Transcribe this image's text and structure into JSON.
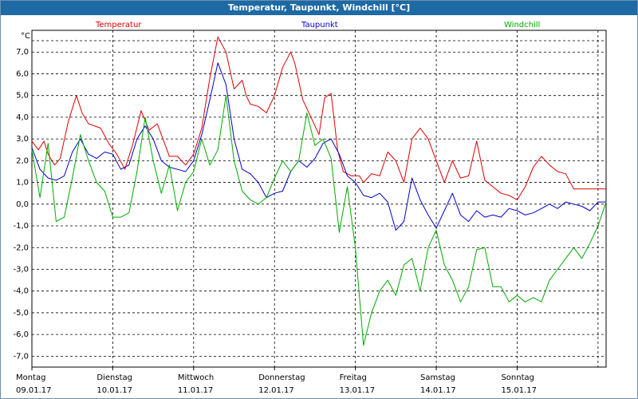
{
  "window": {
    "title": "Temperatur, Taupunkt, Windchill [°C]"
  },
  "chart_data": {
    "type": "line",
    "title": "Temperatur, Taupunkt, Windchill [°C]",
    "ylabel": "°C",
    "ylim": [
      -7.5,
      8.0
    ],
    "grid": true,
    "legend_placement": "top",
    "y_ticks": [
      "7,0",
      "6,0",
      "5,0",
      "4,0",
      "3,0",
      "2,0",
      "1,0",
      "0,0",
      "-1,0",
      "-2,0",
      "-3,0",
      "-4,0",
      "-5,0",
      "-6,0",
      "-7,0"
    ],
    "x_days": [
      {
        "weekday": "Montag",
        "date": "09.01.17"
      },
      {
        "weekday": "Dienstag",
        "date": "10.01.17"
      },
      {
        "weekday": "Mittwoch",
        "date": "11.01.17"
      },
      {
        "weekday": "Donnerstag",
        "date": "12.01.17"
      },
      {
        "weekday": "Freitag",
        "date": "13.01.17"
      },
      {
        "weekday": "Samstag",
        "date": "14.01.17"
      },
      {
        "weekday": "Sonntag",
        "date": "15.01.17"
      }
    ],
    "x_domain_days": [
      0,
      7.1
    ],
    "series": [
      {
        "name": "Temperatur",
        "color": "#dd0000",
        "x": [
          0,
          0.08,
          0.15,
          0.2,
          0.28,
          0.35,
          0.45,
          0.55,
          0.62,
          0.7,
          0.85,
          0.95,
          1.05,
          1.15,
          1.25,
          1.35,
          1.45,
          1.55,
          1.62,
          1.7,
          1.8,
          1.9,
          2.0,
          2.1,
          2.2,
          2.3,
          2.4,
          2.5,
          2.6,
          2.65,
          2.7,
          2.8,
          2.9,
          3.0,
          3.1,
          3.2,
          3.25,
          3.35,
          3.45,
          3.55,
          3.62,
          3.7,
          3.78,
          3.85,
          3.95,
          4.05,
          4.1,
          4.2,
          4.3,
          4.4,
          4.5,
          4.6,
          4.7,
          4.8,
          4.9,
          5.0,
          5.1,
          5.2,
          5.3,
          5.4,
          5.5,
          5.6,
          5.7,
          5.8,
          5.9,
          6.0,
          6.1,
          6.2,
          6.3,
          6.4,
          6.5,
          6.6,
          6.7,
          6.8,
          6.9,
          7.0,
          7.1
        ],
        "y": [
          2.9,
          2.5,
          2.9,
          2.3,
          1.8,
          2.1,
          3.8,
          5.0,
          4.2,
          3.7,
          3.5,
          2.8,
          2.3,
          1.6,
          2.8,
          4.3,
          3.4,
          3.7,
          3.0,
          2.2,
          2.2,
          1.8,
          2.3,
          3.5,
          5.8,
          7.7,
          7.0,
          5.3,
          5.7,
          5.0,
          4.6,
          4.5,
          4.2,
          5.0,
          6.3,
          7.0,
          6.5,
          4.8,
          4.0,
          3.2,
          4.9,
          5.1,
          2.5,
          1.5,
          1.3,
          1.3,
          1.0,
          1.4,
          1.3,
          2.4,
          2.0,
          1.0,
          3.0,
          3.5,
          3.0,
          2.0,
          1.0,
          2.0,
          1.2,
          1.3,
          2.9,
          1.1,
          0.8,
          0.5,
          0.4,
          0.2,
          0.8,
          1.7,
          2.2,
          1.8,
          1.5,
          1.4,
          0.7,
          0.7,
          0.7,
          0.7,
          0.7
        ]
      },
      {
        "name": "Taupunkt",
        "color": "#0000cc",
        "x": [
          0,
          0.1,
          0.2,
          0.3,
          0.4,
          0.5,
          0.6,
          0.7,
          0.8,
          0.9,
          1.0,
          1.1,
          1.2,
          1.3,
          1.4,
          1.5,
          1.6,
          1.7,
          1.8,
          1.9,
          2.0,
          2.1,
          2.2,
          2.3,
          2.4,
          2.5,
          2.6,
          2.7,
          2.8,
          2.9,
          3.0,
          3.1,
          3.2,
          3.3,
          3.4,
          3.5,
          3.6,
          3.7,
          3.8,
          3.9,
          4.0,
          4.1,
          4.2,
          4.3,
          4.4,
          4.5,
          4.6,
          4.7,
          4.8,
          4.9,
          5.0,
          5.1,
          5.2,
          5.3,
          5.4,
          5.5,
          5.6,
          5.7,
          5.8,
          5.9,
          6.0,
          6.1,
          6.2,
          6.3,
          6.4,
          6.5,
          6.6,
          6.7,
          6.8,
          6.9,
          7.0,
          7.1
        ],
        "y": [
          2.6,
          1.6,
          1.2,
          1.1,
          1.3,
          2.4,
          3.0,
          2.3,
          2.1,
          2.4,
          2.3,
          1.6,
          1.8,
          3.0,
          3.6,
          3.0,
          2.0,
          1.7,
          1.6,
          1.5,
          2.0,
          3.2,
          4.8,
          6.5,
          5.5,
          3.0,
          1.6,
          1.4,
          1.0,
          0.3,
          0.5,
          0.6,
          1.5,
          2.0,
          1.7,
          2.1,
          2.8,
          3.0,
          2.3,
          1.3,
          1.0,
          0.4,
          0.3,
          0.5,
          0.1,
          -1.2,
          -0.8,
          1.2,
          0.2,
          -0.5,
          -1.1,
          -0.3,
          0.5,
          -0.5,
          -0.8,
          -0.3,
          -0.6,
          -0.5,
          -0.6,
          -0.2,
          -0.3,
          -0.5,
          -0.4,
          -0.2,
          0.0,
          -0.2,
          0.1,
          0.0,
          -0.1,
          -0.3,
          0.1,
          0.1
        ]
      },
      {
        "name": "Windchill",
        "color": "#00aa00",
        "x": [
          0,
          0.1,
          0.2,
          0.3,
          0.4,
          0.5,
          0.6,
          0.7,
          0.8,
          0.9,
          1.0,
          1.1,
          1.2,
          1.3,
          1.4,
          1.5,
          1.6,
          1.7,
          1.8,
          1.9,
          2.0,
          2.1,
          2.2,
          2.3,
          2.4,
          2.5,
          2.6,
          2.7,
          2.8,
          2.9,
          3.0,
          3.1,
          3.2,
          3.3,
          3.4,
          3.5,
          3.6,
          3.7,
          3.8,
          3.9,
          4.0,
          4.1,
          4.2,
          4.3,
          4.4,
          4.5,
          4.6,
          4.7,
          4.8,
          4.9,
          5.0,
          5.1,
          5.2,
          5.3,
          5.4,
          5.5,
          5.6,
          5.7,
          5.8,
          5.9,
          6.0,
          6.1,
          6.2,
          6.3,
          6.4,
          6.5,
          6.6,
          6.7,
          6.8,
          6.9,
          7.0,
          7.1
        ],
        "y": [
          2.5,
          0.3,
          2.8,
          -0.8,
          -0.6,
          1.2,
          3.2,
          2.0,
          1.0,
          0.6,
          -0.6,
          -0.6,
          -0.4,
          1.5,
          4.0,
          2.0,
          0.5,
          1.8,
          -0.3,
          1.0,
          1.5,
          3.0,
          1.8,
          2.5,
          5.0,
          2.0,
          0.6,
          0.2,
          0.0,
          0.3,
          1.2,
          2.0,
          1.5,
          2.0,
          4.2,
          2.7,
          3.0,
          2.1,
          -1.3,
          0.8,
          -2.0,
          -6.5,
          -5.0,
          -4.0,
          -3.5,
          -4.2,
          -2.8,
          -2.5,
          -4.0,
          -2.0,
          -1.2,
          -2.8,
          -3.5,
          -4.5,
          -3.8,
          -2.1,
          -2.0,
          -3.8,
          -3.8,
          -4.5,
          -4.2,
          -4.5,
          -4.3,
          -4.5,
          -3.5,
          -3.0,
          -2.5,
          -2.0,
          -2.5,
          -1.8,
          -1.0,
          0.1
        ]
      }
    ]
  }
}
